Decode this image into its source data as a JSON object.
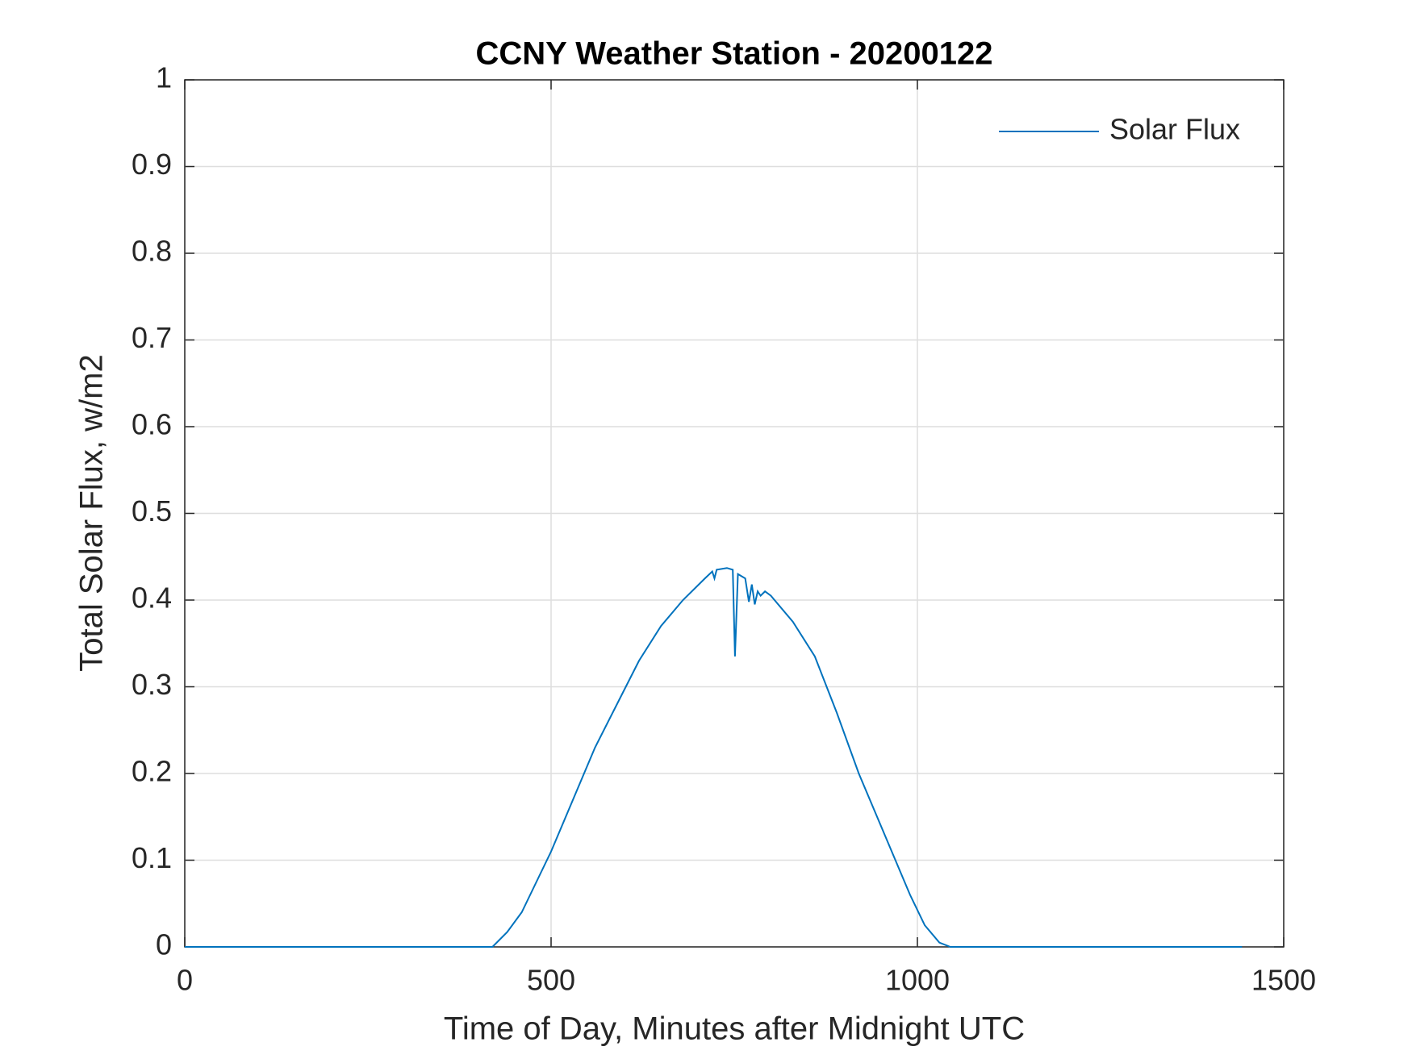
{
  "chart_data": {
    "type": "line",
    "title": "CCNY Weather Station - 20200122",
    "x_label": "Time of Day, Minutes after Midnight UTC",
    "y_label": "Total Solar Flux, w/m2",
    "x": [
      0,
      420,
      440,
      460,
      480,
      500,
      530,
      560,
      590,
      620,
      650,
      680,
      710,
      720,
      723,
      726,
      740,
      748,
      751,
      755,
      765,
      770,
      774,
      778,
      782,
      786,
      792,
      800,
      830,
      860,
      890,
      920,
      945,
      950,
      970,
      990,
      1010,
      1030,
      1045,
      1443
    ],
    "series": [
      {
        "name": "Solar Flux",
        "color": "#0072bd",
        "values": [
          0,
          0,
          0.017,
          0.04,
          0.075,
          0.11,
          0.17,
          0.23,
          0.28,
          0.33,
          0.37,
          0.4,
          0.425,
          0.433,
          0.425,
          0.435,
          0.437,
          0.435,
          0.335,
          0.43,
          0.425,
          0.398,
          0.418,
          0.395,
          0.41,
          0.405,
          0.41,
          0.405,
          0.375,
          0.335,
          0.27,
          0.2,
          0.15,
          0.14,
          0.1,
          0.06,
          0.025,
          0.005,
          0,
          0
        ]
      }
    ],
    "xlim": [
      0,
      1500
    ],
    "xticks": [
      0,
      500,
      1000,
      1500
    ],
    "ylim": [
      0,
      1
    ],
    "yticks": [
      0,
      0.1,
      0.2,
      0.3,
      0.4,
      0.5,
      0.6,
      0.7,
      0.8,
      0.9,
      1
    ],
    "grid": true,
    "legend": "upper right"
  }
}
